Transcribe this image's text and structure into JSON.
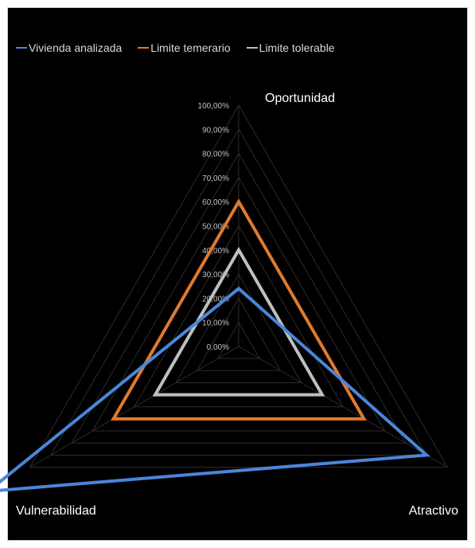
{
  "chart_data": {
    "type": "radar",
    "axes": [
      "Oportunidad",
      "Atractivo",
      "Vulnerabilidad"
    ],
    "tick_labels": [
      "0,00%",
      "10,00%",
      "20,00%",
      "30,00%",
      "40,00%",
      "50,00%",
      "60,00%",
      "70,00%",
      "80,00%",
      "90,00%",
      "100,00%"
    ],
    "range": [
      0,
      100
    ],
    "grid": true,
    "legend_position": "top",
    "series": [
      {
        "name": "Vivienda analizada",
        "color": "#4a86d8",
        "values": [
          24,
          90,
          120
        ]
      },
      {
        "name": "Limite temerario",
        "color": "#e07a2e",
        "values": [
          60,
          60,
          60
        ]
      },
      {
        "name": "Limite tolerable",
        "color": "#bfbfbf",
        "values": [
          40,
          40,
          40
        ]
      }
    ]
  }
}
